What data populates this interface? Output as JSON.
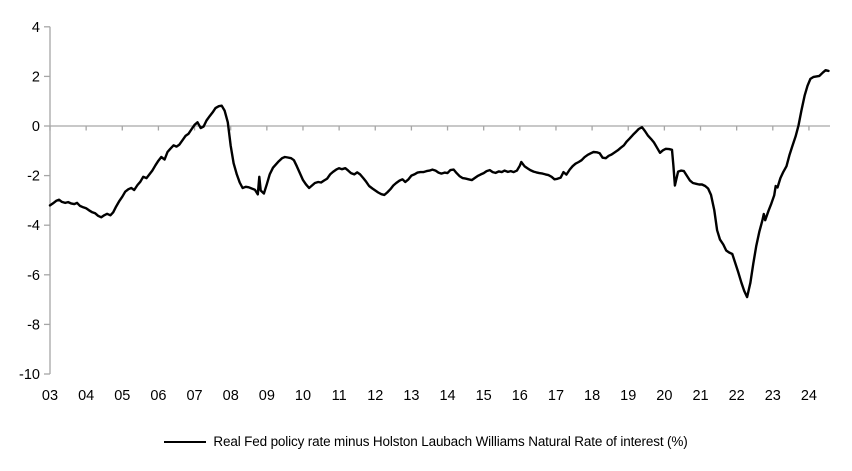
{
  "chart_data": {
    "type": "line",
    "title": "",
    "legend_label": "Real Fed policy rate minus Holston Laubach Williams Natural Rate of interest (%)",
    "legend_position": "bottom-center",
    "grid": "zero-line-only",
    "axis_color": "#a6a6a6",
    "line_color": "#000000",
    "label_color": "#000000",
    "ylim": [
      -10,
      4
    ],
    "xlim": [
      2003,
      2024.55
    ],
    "y_ticks": [
      4,
      2,
      0,
      -2,
      -4,
      -6,
      -8,
      -10
    ],
    "x_tick_years": [
      2003,
      2004,
      2005,
      2006,
      2007,
      2008,
      2009,
      2010,
      2011,
      2012,
      2013,
      2014,
      2015,
      2016,
      2017,
      2018,
      2019,
      2020,
      2021,
      2022,
      2023,
      2024
    ],
    "x_tick_labels": [
      "03",
      "04",
      "05",
      "06",
      "07",
      "08",
      "09",
      "10",
      "11",
      "12",
      "13",
      "14",
      "15",
      "16",
      "17",
      "18",
      "19",
      "20",
      "21",
      "22",
      "23",
      "24"
    ],
    "series": [
      {
        "name": "Real Fed policy rate minus Holston Laubach Williams Natural Rate of interest (%)",
        "color": "#000000",
        "points": [
          [
            2003.0,
            -3.2
          ],
          [
            2003.08,
            -3.12
          ],
          [
            2003.17,
            -3.02
          ],
          [
            2003.25,
            -2.97
          ],
          [
            2003.33,
            -3.06
          ],
          [
            2003.42,
            -3.1
          ],
          [
            2003.5,
            -3.07
          ],
          [
            2003.58,
            -3.12
          ],
          [
            2003.67,
            -3.15
          ],
          [
            2003.75,
            -3.1
          ],
          [
            2003.83,
            -3.22
          ],
          [
            2003.92,
            -3.28
          ],
          [
            2004.0,
            -3.32
          ],
          [
            2004.08,
            -3.4
          ],
          [
            2004.17,
            -3.48
          ],
          [
            2004.25,
            -3.52
          ],
          [
            2004.33,
            -3.62
          ],
          [
            2004.42,
            -3.68
          ],
          [
            2004.5,
            -3.6
          ],
          [
            2004.58,
            -3.54
          ],
          [
            2004.67,
            -3.6
          ],
          [
            2004.75,
            -3.48
          ],
          [
            2004.83,
            -3.25
          ],
          [
            2004.92,
            -3.02
          ],
          [
            2005.0,
            -2.85
          ],
          [
            2005.08,
            -2.65
          ],
          [
            2005.17,
            -2.55
          ],
          [
            2005.25,
            -2.5
          ],
          [
            2005.33,
            -2.58
          ],
          [
            2005.42,
            -2.38
          ],
          [
            2005.5,
            -2.25
          ],
          [
            2005.58,
            -2.05
          ],
          [
            2005.67,
            -2.1
          ],
          [
            2005.75,
            -1.95
          ],
          [
            2005.83,
            -1.8
          ],
          [
            2005.92,
            -1.58
          ],
          [
            2006.0,
            -1.4
          ],
          [
            2006.08,
            -1.25
          ],
          [
            2006.17,
            -1.35
          ],
          [
            2006.25,
            -1.05
          ],
          [
            2006.33,
            -0.92
          ],
          [
            2006.42,
            -0.78
          ],
          [
            2006.5,
            -0.83
          ],
          [
            2006.58,
            -0.75
          ],
          [
            2006.67,
            -0.57
          ],
          [
            2006.75,
            -0.4
          ],
          [
            2006.83,
            -0.32
          ],
          [
            2006.92,
            -0.12
          ],
          [
            2007.0,
            0.05
          ],
          [
            2007.08,
            0.15
          ],
          [
            2007.17,
            -0.08
          ],
          [
            2007.25,
            -0.02
          ],
          [
            2007.33,
            0.22
          ],
          [
            2007.42,
            0.4
          ],
          [
            2007.5,
            0.55
          ],
          [
            2007.58,
            0.72
          ],
          [
            2007.67,
            0.8
          ],
          [
            2007.75,
            0.82
          ],
          [
            2007.83,
            0.62
          ],
          [
            2007.92,
            0.15
          ],
          [
            2008.0,
            -0.8
          ],
          [
            2008.08,
            -1.5
          ],
          [
            2008.17,
            -1.95
          ],
          [
            2008.25,
            -2.28
          ],
          [
            2008.33,
            -2.5
          ],
          [
            2008.42,
            -2.45
          ],
          [
            2008.5,
            -2.47
          ],
          [
            2008.58,
            -2.52
          ],
          [
            2008.67,
            -2.57
          ],
          [
            2008.75,
            -2.76
          ],
          [
            2008.79,
            -2.05
          ],
          [
            2008.83,
            -2.6
          ],
          [
            2008.92,
            -2.72
          ],
          [
            2009.0,
            -2.35
          ],
          [
            2009.08,
            -1.95
          ],
          [
            2009.17,
            -1.68
          ],
          [
            2009.25,
            -1.55
          ],
          [
            2009.33,
            -1.42
          ],
          [
            2009.42,
            -1.3
          ],
          [
            2009.5,
            -1.25
          ],
          [
            2009.58,
            -1.27
          ],
          [
            2009.67,
            -1.3
          ],
          [
            2009.75,
            -1.38
          ],
          [
            2009.83,
            -1.62
          ],
          [
            2009.92,
            -1.92
          ],
          [
            2010.0,
            -2.18
          ],
          [
            2010.08,
            -2.35
          ],
          [
            2010.17,
            -2.5
          ],
          [
            2010.25,
            -2.4
          ],
          [
            2010.33,
            -2.3
          ],
          [
            2010.42,
            -2.26
          ],
          [
            2010.5,
            -2.28
          ],
          [
            2010.58,
            -2.2
          ],
          [
            2010.67,
            -2.12
          ],
          [
            2010.75,
            -1.95
          ],
          [
            2010.83,
            -1.85
          ],
          [
            2010.92,
            -1.76
          ],
          [
            2011.0,
            -1.7
          ],
          [
            2011.08,
            -1.74
          ],
          [
            2011.17,
            -1.7
          ],
          [
            2011.25,
            -1.8
          ],
          [
            2011.33,
            -1.9
          ],
          [
            2011.42,
            -1.95
          ],
          [
            2011.5,
            -1.87
          ],
          [
            2011.58,
            -1.95
          ],
          [
            2011.67,
            -2.1
          ],
          [
            2011.75,
            -2.25
          ],
          [
            2011.83,
            -2.42
          ],
          [
            2011.92,
            -2.52
          ],
          [
            2012.0,
            -2.6
          ],
          [
            2012.08,
            -2.68
          ],
          [
            2012.17,
            -2.75
          ],
          [
            2012.25,
            -2.78
          ],
          [
            2012.33,
            -2.68
          ],
          [
            2012.42,
            -2.55
          ],
          [
            2012.5,
            -2.4
          ],
          [
            2012.58,
            -2.3
          ],
          [
            2012.67,
            -2.2
          ],
          [
            2012.75,
            -2.15
          ],
          [
            2012.83,
            -2.26
          ],
          [
            2012.92,
            -2.15
          ],
          [
            2013.0,
            -2.0
          ],
          [
            2013.08,
            -1.95
          ],
          [
            2013.17,
            -1.88
          ],
          [
            2013.25,
            -1.86
          ],
          [
            2013.33,
            -1.86
          ],
          [
            2013.42,
            -1.82
          ],
          [
            2013.5,
            -1.8
          ],
          [
            2013.58,
            -1.76
          ],
          [
            2013.67,
            -1.8
          ],
          [
            2013.75,
            -1.88
          ],
          [
            2013.83,
            -1.92
          ],
          [
            2013.92,
            -1.88
          ],
          [
            2014.0,
            -1.9
          ],
          [
            2014.08,
            -1.78
          ],
          [
            2014.17,
            -1.76
          ],
          [
            2014.25,
            -1.9
          ],
          [
            2014.33,
            -2.02
          ],
          [
            2014.42,
            -2.1
          ],
          [
            2014.5,
            -2.12
          ],
          [
            2014.58,
            -2.15
          ],
          [
            2014.67,
            -2.18
          ],
          [
            2014.75,
            -2.1
          ],
          [
            2014.83,
            -2.02
          ],
          [
            2014.92,
            -1.95
          ],
          [
            2015.0,
            -1.9
          ],
          [
            2015.08,
            -1.82
          ],
          [
            2015.17,
            -1.78
          ],
          [
            2015.25,
            -1.86
          ],
          [
            2015.33,
            -1.89
          ],
          [
            2015.42,
            -1.83
          ],
          [
            2015.5,
            -1.86
          ],
          [
            2015.58,
            -1.8
          ],
          [
            2015.67,
            -1.85
          ],
          [
            2015.75,
            -1.82
          ],
          [
            2015.83,
            -1.86
          ],
          [
            2015.92,
            -1.8
          ],
          [
            2016.0,
            -1.6
          ],
          [
            2016.04,
            -1.45
          ],
          [
            2016.13,
            -1.62
          ],
          [
            2016.21,
            -1.7
          ],
          [
            2016.29,
            -1.78
          ],
          [
            2016.38,
            -1.84
          ],
          [
            2016.46,
            -1.87
          ],
          [
            2016.54,
            -1.9
          ],
          [
            2016.63,
            -1.92
          ],
          [
            2016.71,
            -1.95
          ],
          [
            2016.79,
            -1.98
          ],
          [
            2016.88,
            -2.05
          ],
          [
            2016.96,
            -2.15
          ],
          [
            2017.04,
            -2.13
          ],
          [
            2017.13,
            -2.08
          ],
          [
            2017.21,
            -1.86
          ],
          [
            2017.29,
            -1.96
          ],
          [
            2017.38,
            -1.76
          ],
          [
            2017.46,
            -1.62
          ],
          [
            2017.54,
            -1.52
          ],
          [
            2017.63,
            -1.45
          ],
          [
            2017.71,
            -1.38
          ],
          [
            2017.79,
            -1.26
          ],
          [
            2017.88,
            -1.16
          ],
          [
            2017.96,
            -1.1
          ],
          [
            2018.04,
            -1.05
          ],
          [
            2018.13,
            -1.06
          ],
          [
            2018.21,
            -1.1
          ],
          [
            2018.29,
            -1.28
          ],
          [
            2018.38,
            -1.3
          ],
          [
            2018.46,
            -1.2
          ],
          [
            2018.54,
            -1.15
          ],
          [
            2018.63,
            -1.06
          ],
          [
            2018.71,
            -0.98
          ],
          [
            2018.79,
            -0.88
          ],
          [
            2018.88,
            -0.78
          ],
          [
            2018.96,
            -0.62
          ],
          [
            2019.04,
            -0.5
          ],
          [
            2019.13,
            -0.36
          ],
          [
            2019.21,
            -0.24
          ],
          [
            2019.29,
            -0.12
          ],
          [
            2019.38,
            -0.05
          ],
          [
            2019.46,
            -0.2
          ],
          [
            2019.54,
            -0.38
          ],
          [
            2019.63,
            -0.52
          ],
          [
            2019.71,
            -0.66
          ],
          [
            2019.79,
            -0.86
          ],
          [
            2019.88,
            -1.08
          ],
          [
            2019.96,
            -0.98
          ],
          [
            2020.04,
            -0.92
          ],
          [
            2020.13,
            -0.93
          ],
          [
            2020.21,
            -0.96
          ],
          [
            2020.25,
            -1.6
          ],
          [
            2020.29,
            -2.4
          ],
          [
            2020.33,
            -2.15
          ],
          [
            2020.38,
            -1.84
          ],
          [
            2020.46,
            -1.8
          ],
          [
            2020.54,
            -1.82
          ],
          [
            2020.63,
            -2.02
          ],
          [
            2020.71,
            -2.2
          ],
          [
            2020.79,
            -2.3
          ],
          [
            2020.88,
            -2.33
          ],
          [
            2020.96,
            -2.36
          ],
          [
            2021.04,
            -2.36
          ],
          [
            2021.13,
            -2.42
          ],
          [
            2021.21,
            -2.52
          ],
          [
            2021.29,
            -2.78
          ],
          [
            2021.38,
            -3.4
          ],
          [
            2021.46,
            -4.2
          ],
          [
            2021.54,
            -4.58
          ],
          [
            2021.63,
            -4.78
          ],
          [
            2021.71,
            -5.02
          ],
          [
            2021.79,
            -5.1
          ],
          [
            2021.88,
            -5.16
          ],
          [
            2021.96,
            -5.52
          ],
          [
            2022.04,
            -5.88
          ],
          [
            2022.13,
            -6.32
          ],
          [
            2022.21,
            -6.65
          ],
          [
            2022.29,
            -6.9
          ],
          [
            2022.38,
            -6.32
          ],
          [
            2022.46,
            -5.55
          ],
          [
            2022.54,
            -4.85
          ],
          [
            2022.63,
            -4.25
          ],
          [
            2022.71,
            -3.82
          ],
          [
            2022.75,
            -3.55
          ],
          [
            2022.79,
            -3.8
          ],
          [
            2022.88,
            -3.42
          ],
          [
            2022.96,
            -3.12
          ],
          [
            2023.04,
            -2.8
          ],
          [
            2023.08,
            -2.42
          ],
          [
            2023.13,
            -2.48
          ],
          [
            2023.21,
            -2.1
          ],
          [
            2023.29,
            -1.85
          ],
          [
            2023.38,
            -1.62
          ],
          [
            2023.46,
            -1.18
          ],
          [
            2023.54,
            -0.82
          ],
          [
            2023.63,
            -0.42
          ],
          [
            2023.71,
            0.02
          ],
          [
            2023.79,
            0.62
          ],
          [
            2023.88,
            1.22
          ],
          [
            2023.96,
            1.62
          ],
          [
            2024.04,
            1.9
          ],
          [
            2024.13,
            1.98
          ],
          [
            2024.21,
            2.0
          ],
          [
            2024.29,
            2.02
          ],
          [
            2024.38,
            2.15
          ],
          [
            2024.46,
            2.25
          ],
          [
            2024.54,
            2.22
          ]
        ]
      }
    ]
  }
}
